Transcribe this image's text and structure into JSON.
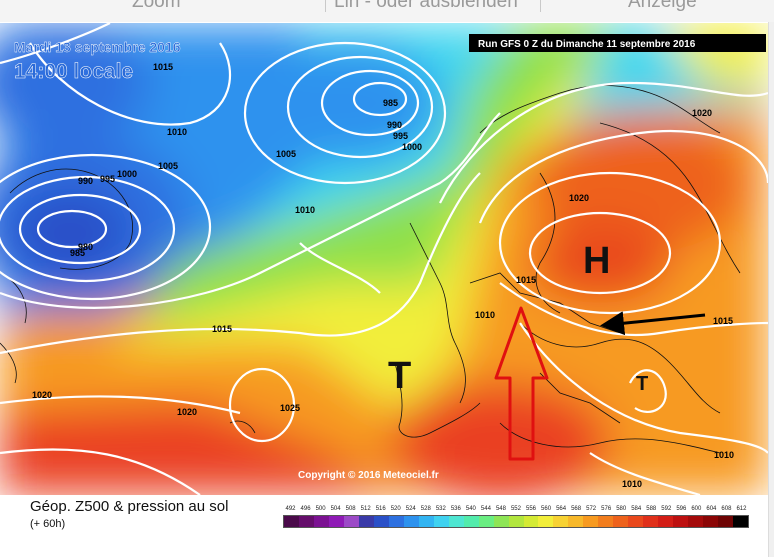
{
  "toolbar": {
    "items": [
      "Zoom",
      "Lin - oder ausblenden",
      "Anzeige"
    ]
  },
  "map": {
    "date_line": "Mardi 13 septembre 2016",
    "time_line": "14:00 locale",
    "run_label": "Run GFS 0 Z du Dimanche 11 septembre 2016",
    "copyright": "Copyright © 2016 Meteociel.fr",
    "high_label": "H",
    "trough_labels": [
      "T",
      "T"
    ],
    "isobars": [
      "1015",
      "985",
      "990",
      "995",
      "1000",
      "1010",
      "1005",
      "990",
      "995",
      "1000",
      "1005",
      "980",
      "985",
      "1010",
      "1015",
      "1010",
      "1015",
      "1020",
      "1020",
      "1025",
      "1020",
      "1015",
      "1010",
      "1010",
      "1020"
    ],
    "colors": {
      "low_blue": "#1464d6",
      "cyan": "#3fd7f0",
      "green": "#8ee04a",
      "yellow": "#f2ee3a",
      "orange": "#f79a20",
      "red": "#ea4020",
      "arrow_dark": "#000000",
      "arrow_red": "#e01010"
    }
  },
  "legend": {
    "title": "Géop. Z500 & pression au sol",
    "subtitle": "(+ 60h)",
    "scale_values": [
      "492",
      "496",
      "500",
      "504",
      "508",
      "512",
      "516",
      "520",
      "524",
      "528",
      "532",
      "536",
      "540",
      "544",
      "548",
      "552",
      "556",
      "560",
      "564",
      "568",
      "572",
      "576",
      "580",
      "584",
      "588",
      "592",
      "596",
      "600",
      "604",
      "608",
      "612"
    ],
    "scale_colors": [
      "#4a0a4a",
      "#650d6b",
      "#7b1192",
      "#8f1ab6",
      "#9c4ac7",
      "#3a3aa8",
      "#2a50c8",
      "#2d70e0",
      "#2d92ee",
      "#32b4f2",
      "#3fd2f0",
      "#4ee6d2",
      "#52ecac",
      "#6aee82",
      "#8ee556",
      "#b2e63e",
      "#d4ea34",
      "#f2ee3a",
      "#f7d233",
      "#f7b82a",
      "#f79a20",
      "#f27d1d",
      "#ee621c",
      "#e9481c",
      "#e0301a",
      "#d31d16",
      "#bd1010",
      "#a40a0a",
      "#8b0505",
      "#6e0303",
      "#000000"
    ]
  }
}
